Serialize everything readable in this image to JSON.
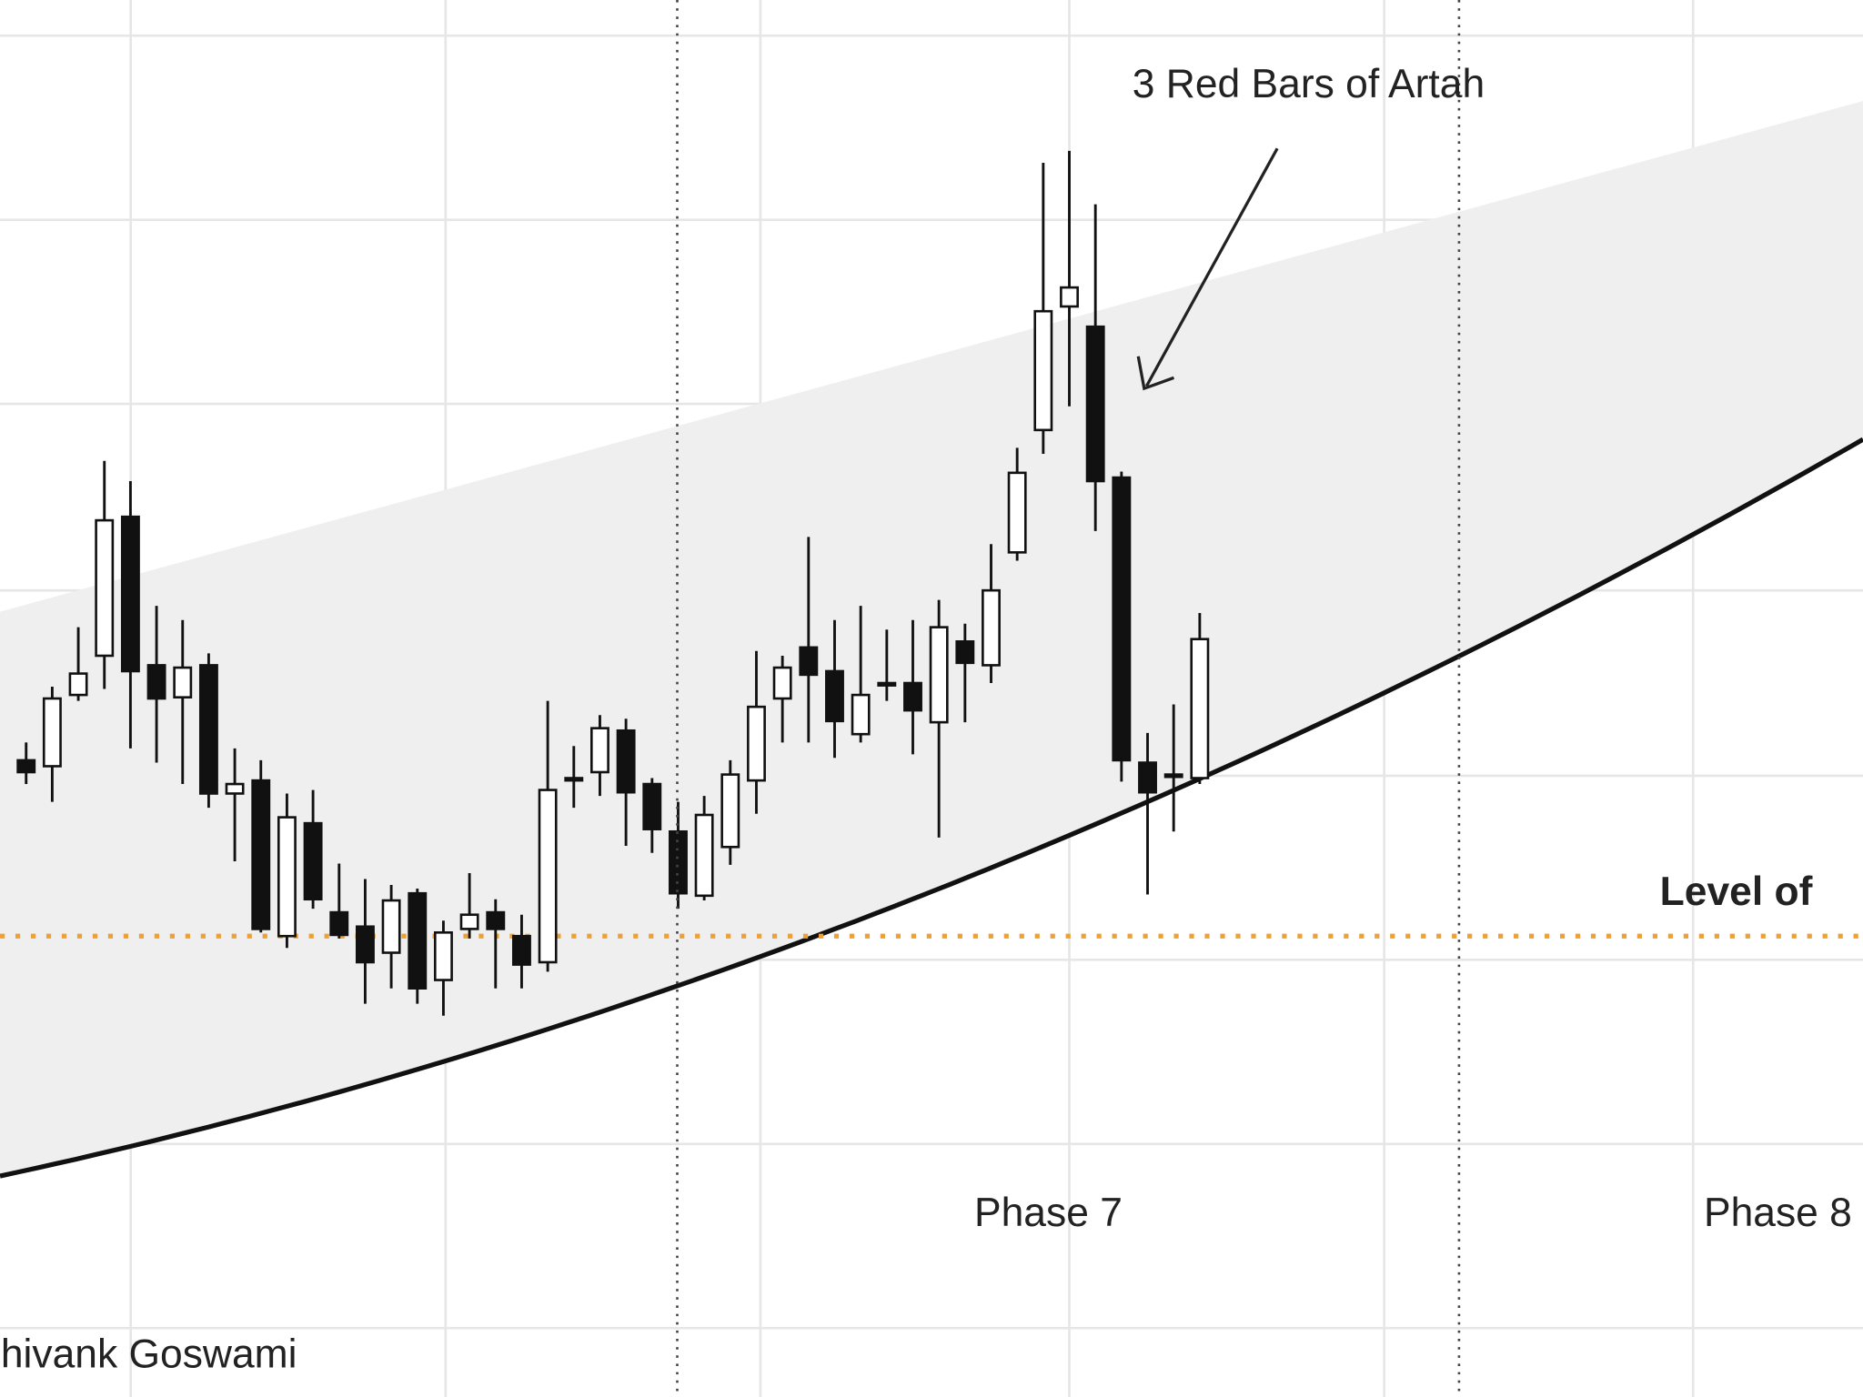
{
  "chart_data": {
    "type": "candlestick",
    "ylim": [
      0,
      1176
    ],
    "open": [
      536,
      531,
      591,
      624,
      741,
      616,
      589,
      616,
      508,
      519,
      388,
      483,
      408,
      396,
      374,
      424,
      351,
      394,
      408,
      388,
      366,
      520,
      526,
      561,
      516,
      476,
      422,
      463,
      519,
      588,
      631,
      611,
      558,
      601,
      601,
      568,
      636,
      616,
      711,
      814,
      918,
      901,
      774,
      534,
      524,
      521
    ],
    "high": [
      551,
      598,
      648,
      788,
      771,
      666,
      654,
      626,
      546,
      536,
      508,
      511,
      449,
      436,
      431,
      428,
      401,
      441,
      419,
      406,
      586,
      548,
      574,
      571,
      521,
      501,
      506,
      536,
      628,
      624,
      724,
      654,
      666,
      646,
      654,
      671,
      651,
      718,
      799,
      1039,
      1049,
      1004,
      779,
      559,
      583,
      660
    ],
    "low": [
      516,
      501,
      586,
      596,
      546,
      534,
      516,
      496,
      451,
      391,
      378,
      411,
      386,
      331,
      344,
      331,
      321,
      386,
      344,
      344,
      358,
      496,
      506,
      464,
      458,
      411,
      418,
      448,
      491,
      551,
      551,
      538,
      551,
      586,
      541,
      471,
      568,
      601,
      704,
      794,
      834,
      729,
      518,
      423,
      476,
      516
    ],
    "close": [
      526,
      588,
      609,
      738,
      611,
      588,
      614,
      508,
      516,
      394,
      488,
      419,
      389,
      366,
      418,
      344,
      391,
      406,
      394,
      364,
      511,
      521,
      563,
      509,
      478,
      424,
      490,
      524,
      581,
      614,
      608,
      569,
      591,
      601,
      578,
      648,
      618,
      679,
      778,
      914,
      934,
      771,
      536,
      509,
      524,
      638
    ],
    "level": 388,
    "annotations": [
      "3 Red Bars of Artah",
      "Level of",
      "Phase 7",
      "Phase 8",
      "Shivank Goswami"
    ]
  }
}
